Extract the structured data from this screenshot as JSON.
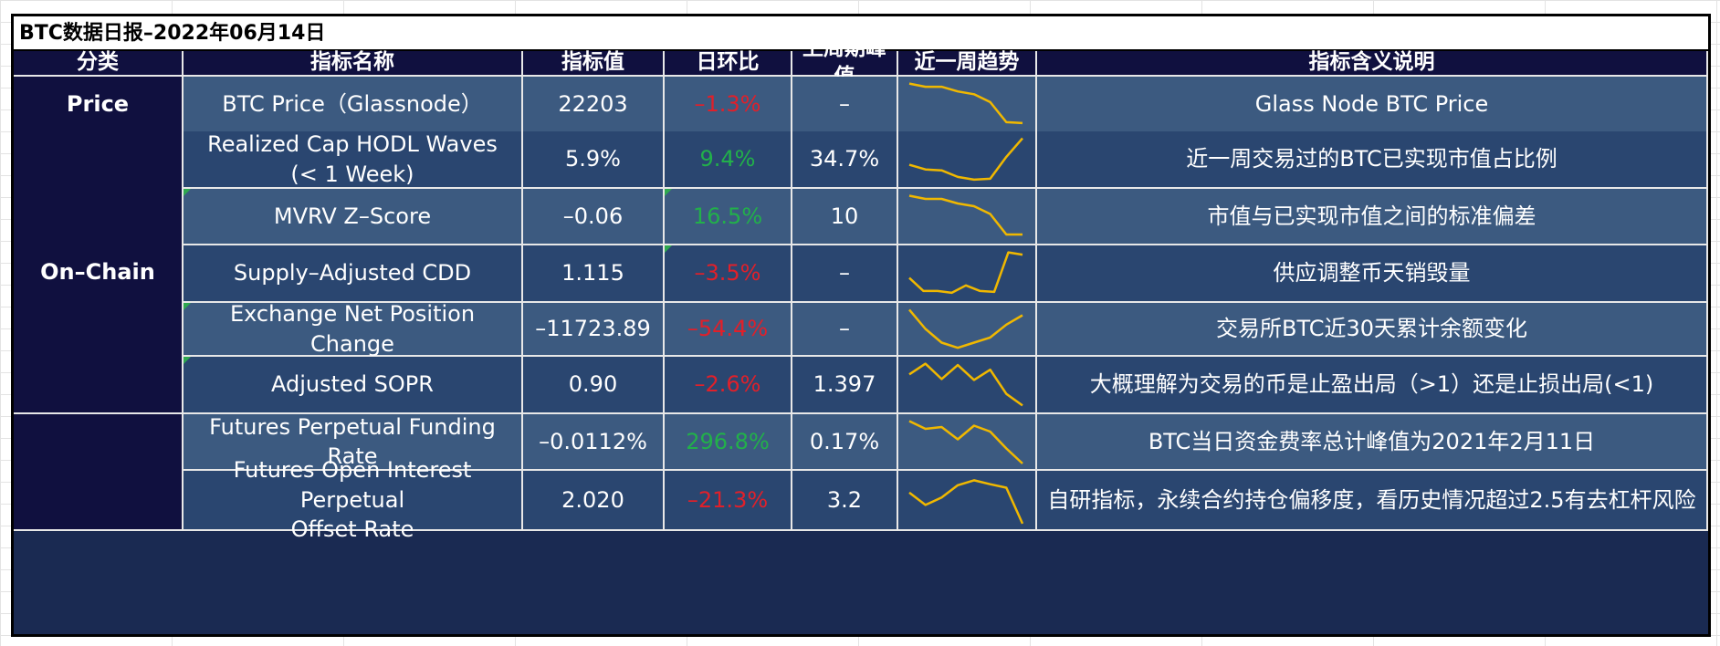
{
  "title": "BTC数据日报–2022年06月14日",
  "headers": {
    "category": "分类",
    "name": "指标名称",
    "value": "指标值",
    "dod": "日环比",
    "last_week_peak": "上周期峰值",
    "trend": "近一周趋势",
    "meaning": "指标含义说明"
  },
  "categories": {
    "price": "Price",
    "onchain": "On–Chain",
    "derivatives": ""
  },
  "rows": [
    {
      "name": "BTC Price（Glassnode）",
      "value": "22203",
      "dod": "–1.3%",
      "dod_sign": "neg",
      "peak": "–",
      "meaning": "Glass Node BTC Price",
      "trend": [
        0.95,
        0.88,
        0.88,
        0.78,
        0.72,
        0.55,
        0.12,
        0.1
      ]
    },
    {
      "name": "Realized Cap HODL Waves\n(< 1 Week)",
      "value": "5.9%",
      "dod": "9.4%",
      "dod_sign": "pos",
      "peak": "34.7%",
      "meaning": "近一周交易过的BTC已实现市值占比例",
      "trend": [
        0.38,
        0.28,
        0.26,
        0.12,
        0.06,
        0.08,
        0.55,
        0.95
      ]
    },
    {
      "name": "MVRV Z–Score",
      "value": "–0.06",
      "dod": "16.5%",
      "dod_sign": "pos",
      "peak": "10",
      "meaning": "市值与已实现市值之间的标准偏差",
      "trend": [
        0.95,
        0.88,
        0.88,
        0.78,
        0.72,
        0.55,
        0.1,
        0.1
      ]
    },
    {
      "name": "Supply–Adjusted CDD",
      "value": "1.115",
      "dod": "–3.5%",
      "dod_sign": "neg",
      "peak": "–",
      "meaning": "供应调整币天销毁量",
      "trend": [
        0.4,
        0.12,
        0.12,
        0.08,
        0.24,
        0.12,
        0.1,
        0.95,
        0.9
      ]
    },
    {
      "name": "Exchange Net Position Change",
      "value": "–11723.89",
      "dod": "–54.4%",
      "dod_sign": "neg",
      "peak": "–",
      "meaning": "交易所BTC近30天累计余额变化",
      "trend": [
        0.95,
        0.5,
        0.18,
        0.06,
        0.18,
        0.3,
        0.6,
        0.82
      ]
    },
    {
      "name": "Adjusted SOPR",
      "value": "0.90",
      "dod": "–2.6%",
      "dod_sign": "neg",
      "peak": "1.397",
      "meaning": "大概理解为交易的币是止盈出局（>1）还是止损出局(<1)",
      "trend": [
        0.72,
        0.95,
        0.62,
        0.92,
        0.6,
        0.82,
        0.3,
        0.05
      ]
    },
    {
      "name": "Futures Perpetual Funding Rate",
      "value": "–0.0112%",
      "dod": "296.8%",
      "dod_sign": "pos",
      "peak": "0.17%",
      "meaning": "BTC当日资金费率总计峰值为2021年2月11日",
      "trend": [
        0.95,
        0.78,
        0.82,
        0.55,
        0.85,
        0.72,
        0.35,
        0.02
      ]
    },
    {
      "name": "Futures Open Interest Perpetual\nOffset Rate",
      "value": "2.020",
      "dod": "–21.3%",
      "dod_sign": "neg",
      "peak": "3.2",
      "meaning": "自研指标，永续合约持仓偏移度，看历史情况超过2.5有去杠杆风险",
      "trend": [
        0.65,
        0.4,
        0.55,
        0.8,
        0.9,
        0.82,
        0.75,
        0.02
      ]
    }
  ],
  "colors": {
    "trend_line": "#f0b800",
    "negative": "#e0202a",
    "positive": "#22b04a",
    "header_bg": "#10103f"
  }
}
